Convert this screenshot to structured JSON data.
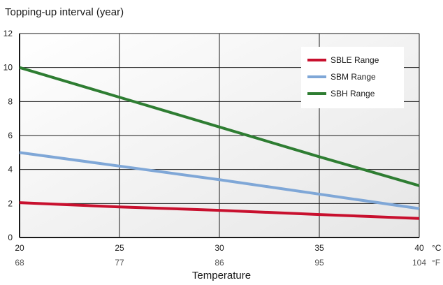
{
  "chart_data": {
    "type": "line",
    "title": "Topping-up interval (year)",
    "xlabel": "Temperature",
    "x_unit_primary": "°C",
    "x_unit_secondary": "°F",
    "x": [
      20,
      25,
      30,
      35,
      40
    ],
    "x_secondary_labels": [
      "68",
      "77",
      "86",
      "95",
      "104"
    ],
    "xlim": [
      20,
      40
    ],
    "ylim": [
      0,
      12
    ],
    "yticks": [
      0,
      2,
      4,
      6,
      8,
      10,
      12
    ],
    "grid": true,
    "legend_position": "top-right",
    "series": [
      {
        "name": "SBLE Range",
        "color": "#c8102e",
        "values": [
          2.05,
          1.8,
          1.6,
          1.35,
          1.12
        ]
      },
      {
        "name": "SBM Range",
        "color": "#7fa7d7",
        "values": [
          5.0,
          4.2,
          3.4,
          2.55,
          1.7
        ]
      },
      {
        "name": "SBH Range",
        "color": "#2e7d32",
        "values": [
          10.0,
          8.25,
          6.5,
          4.75,
          3.05
        ]
      }
    ]
  }
}
